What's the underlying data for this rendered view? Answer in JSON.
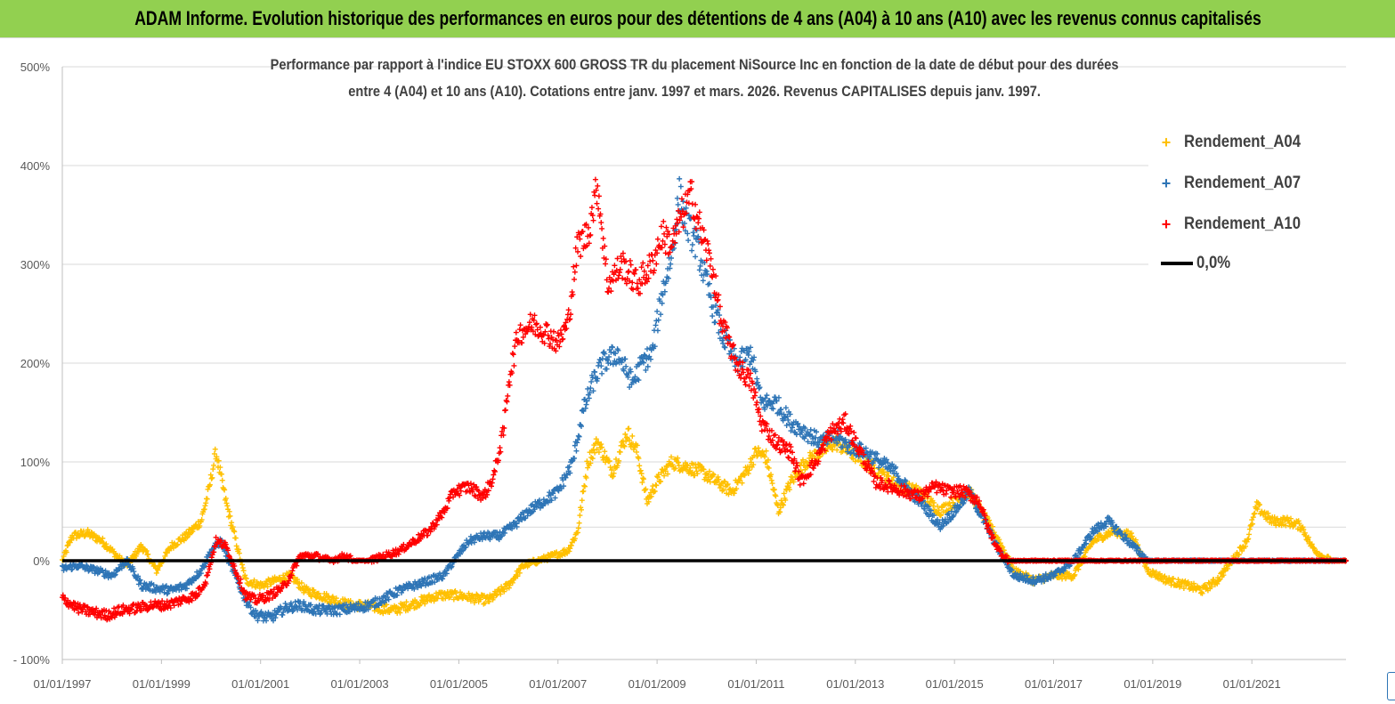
{
  "header": {
    "title": "ADAM Informe. Evolution historique des performances en euros pour des détentions de 4 ans (A04) à 10 ans (A10) avec les revenus connus capitalisés"
  },
  "chart_data": {
    "type": "scatter",
    "title_line1": "Performance par rapport à l'indice EU STOXX 600 GROSS TR  du placement NiSource Inc en fonction de la date de début pour des durées",
    "title_line2": "entre 4 (A04) et 10 ans (A10). Cotations entre janv. 1997 et mars. 2026. Revenus CAPITALISES depuis janv. 1997.",
    "xlabel": "",
    "ylabel": "",
    "x_range": [
      "1997-01-01",
      "2022-11-30"
    ],
    "ylim": [
      -100,
      500
    ],
    "y_ticks": [
      "- 100%",
      "0%",
      "100%",
      "200%",
      "300%",
      "400%",
      "500%"
    ],
    "y_tick_values": [
      -100,
      0,
      100,
      200,
      300,
      400,
      500
    ],
    "x_ticks": [
      "01/01/1997",
      "01/01/1999",
      "01/01/2001",
      "01/01/2003",
      "01/01/2005",
      "01/01/2007",
      "01/01/2009",
      "01/01/2011",
      "01/01/2013",
      "01/01/2015",
      "01/01/2017",
      "01/01/2019",
      "01/01/2021"
    ],
    "grid": "horizontal",
    "legend_position": "top-right",
    "series": [
      {
        "name": "Rendement_A04",
        "color": "#ffc000",
        "marker": "+",
        "points": [
          [
            1997.0,
            0
          ],
          [
            1997.2,
            25
          ],
          [
            1997.5,
            28
          ],
          [
            1997.8,
            20
          ],
          [
            1998.0,
            10
          ],
          [
            1998.3,
            -5
          ],
          [
            1998.6,
            15
          ],
          [
            1998.9,
            -10
          ],
          [
            1999.2,
            15
          ],
          [
            1999.5,
            25
          ],
          [
            1999.8,
            40
          ],
          [
            1999.95,
            70
          ],
          [
            2000.1,
            110
          ],
          [
            2000.3,
            60
          ],
          [
            2000.5,
            20
          ],
          [
            2000.7,
            -20
          ],
          [
            2001.0,
            -25
          ],
          [
            2001.3,
            -20
          ],
          [
            2001.6,
            -15
          ],
          [
            2001.9,
            -30
          ],
          [
            2002.2,
            -35
          ],
          [
            2002.5,
            -40
          ],
          [
            2002.8,
            -45
          ],
          [
            2003.1,
            -45
          ],
          [
            2003.4,
            -48
          ],
          [
            2003.7,
            -50
          ],
          [
            2004.0,
            -45
          ],
          [
            2004.3,
            -40
          ],
          [
            2004.6,
            -35
          ],
          [
            2005.0,
            -35
          ],
          [
            2005.3,
            -38
          ],
          [
            2005.6,
            -40
          ],
          [
            2006.0,
            -25
          ],
          [
            2006.3,
            -5
          ],
          [
            2006.6,
            0
          ],
          [
            2006.9,
            5
          ],
          [
            2007.2,
            10
          ],
          [
            2007.4,
            30
          ],
          [
            2007.6,
            100
          ],
          [
            2007.8,
            120
          ],
          [
            2008.1,
            90
          ],
          [
            2008.4,
            130
          ],
          [
            2008.6,
            110
          ],
          [
            2008.8,
            60
          ],
          [
            2009.0,
            80
          ],
          [
            2009.3,
            100
          ],
          [
            2009.6,
            95
          ],
          [
            2009.9,
            90
          ],
          [
            2010.2,
            80
          ],
          [
            2010.5,
            70
          ],
          [
            2010.8,
            90
          ],
          [
            2011.0,
            110
          ],
          [
            2011.2,
            105
          ],
          [
            2011.45,
            50
          ],
          [
            2011.7,
            80
          ],
          [
            2012.0,
            100
          ],
          [
            2012.3,
            110
          ],
          [
            2012.6,
            120
          ],
          [
            2012.9,
            110
          ],
          [
            2013.2,
            100
          ],
          [
            2013.6,
            85
          ],
          [
            2013.9,
            75
          ],
          [
            2014.3,
            70
          ],
          [
            2014.7,
            50
          ],
          [
            2015.0,
            60
          ],
          [
            2015.3,
            70
          ],
          [
            2015.6,
            45
          ],
          [
            2015.9,
            20
          ],
          [
            2016.2,
            -10
          ],
          [
            2016.6,
            -20
          ],
          [
            2017.0,
            -15
          ],
          [
            2017.4,
            -15
          ],
          [
            2017.8,
            20
          ],
          [
            2018.2,
            30
          ],
          [
            2018.6,
            25
          ],
          [
            2018.9,
            -10
          ],
          [
            2019.3,
            -20
          ],
          [
            2019.7,
            -25
          ],
          [
            2020.0,
            -30
          ],
          [
            2020.3,
            -20
          ],
          [
            2020.6,
            0
          ],
          [
            2020.9,
            20
          ],
          [
            2021.1,
            55
          ],
          [
            2021.4,
            40
          ],
          [
            2021.7,
            40
          ],
          [
            2022.0,
            35
          ],
          [
            2022.2,
            15
          ],
          [
            2022.4,
            5
          ],
          [
            2022.6,
            0
          ],
          [
            2022.9,
            0
          ]
        ]
      },
      {
        "name": "Rendement_A07",
        "color": "#2e75b6",
        "marker": "+",
        "points": [
          [
            1997.0,
            -8
          ],
          [
            1997.3,
            -5
          ],
          [
            1997.7,
            -10
          ],
          [
            1998.0,
            -15
          ],
          [
            1998.3,
            0
          ],
          [
            1998.6,
            -25
          ],
          [
            1998.9,
            -28
          ],
          [
            1999.2,
            -30
          ],
          [
            1999.5,
            -25
          ],
          [
            1999.8,
            -10
          ],
          [
            2000.0,
            10
          ],
          [
            2000.2,
            20
          ],
          [
            2000.4,
            -5
          ],
          [
            2000.7,
            -40
          ],
          [
            2000.9,
            -55
          ],
          [
            2001.2,
            -58
          ],
          [
            2001.5,
            -48
          ],
          [
            2001.8,
            -45
          ],
          [
            2002.1,
            -50
          ],
          [
            2002.5,
            -50
          ],
          [
            2002.9,
            -48
          ],
          [
            2003.2,
            -45
          ],
          [
            2003.5,
            -38
          ],
          [
            2003.8,
            -30
          ],
          [
            2004.1,
            -25
          ],
          [
            2004.4,
            -20
          ],
          [
            2004.7,
            -15
          ],
          [
            2004.9,
            0
          ],
          [
            2005.2,
            20
          ],
          [
            2005.5,
            25
          ],
          [
            2005.8,
            25
          ],
          [
            2006.1,
            35
          ],
          [
            2006.4,
            50
          ],
          [
            2006.7,
            60
          ],
          [
            2007.0,
            70
          ],
          [
            2007.3,
            100
          ],
          [
            2007.5,
            150
          ],
          [
            2007.7,
            180
          ],
          [
            2007.9,
            200
          ],
          [
            2008.2,
            210
          ],
          [
            2008.5,
            180
          ],
          [
            2008.7,
            200
          ],
          [
            2008.9,
            210
          ],
          [
            2009.1,
            270
          ],
          [
            2009.3,
            310
          ],
          [
            2009.45,
            370
          ],
          [
            2009.6,
            340
          ],
          [
            2009.8,
            320
          ],
          [
            2010.0,
            280
          ],
          [
            2010.3,
            230
          ],
          [
            2010.6,
            200
          ],
          [
            2010.9,
            210
          ],
          [
            2011.1,
            160
          ],
          [
            2011.4,
            160
          ],
          [
            2011.7,
            140
          ],
          [
            2012.0,
            130
          ],
          [
            2012.3,
            120
          ],
          [
            2012.6,
            125
          ],
          [
            2012.9,
            115
          ],
          [
            2013.2,
            110
          ],
          [
            2013.5,
            100
          ],
          [
            2013.8,
            90
          ],
          [
            2014.1,
            70
          ],
          [
            2014.4,
            55
          ],
          [
            2014.7,
            35
          ],
          [
            2015.0,
            50
          ],
          [
            2015.3,
            70
          ],
          [
            2015.6,
            40
          ],
          [
            2015.9,
            10
          ],
          [
            2016.2,
            -15
          ],
          [
            2016.6,
            -20
          ],
          [
            2017.0,
            -15
          ],
          [
            2017.4,
            0
          ],
          [
            2017.8,
            30
          ],
          [
            2018.1,
            40
          ],
          [
            2018.4,
            25
          ],
          [
            2018.7,
            10
          ],
          [
            2018.9,
            0
          ],
          [
            2019.2,
            0
          ],
          [
            2019.5,
            0
          ],
          [
            2020.0,
            0
          ],
          [
            2020.5,
            0
          ],
          [
            2021.0,
            0
          ],
          [
            2021.5,
            0
          ],
          [
            2022.0,
            0
          ],
          [
            2022.5,
            0
          ],
          [
            2022.9,
            0
          ]
        ]
      },
      {
        "name": "Rendement_A10",
        "color": "#ff0000",
        "marker": "+",
        "points": [
          [
            1997.0,
            -38
          ],
          [
            1997.3,
            -48
          ],
          [
            1997.6,
            -52
          ],
          [
            1997.9,
            -55
          ],
          [
            1998.2,
            -50
          ],
          [
            1998.5,
            -48
          ],
          [
            1998.8,
            -45
          ],
          [
            1999.1,
            -45
          ],
          [
            1999.4,
            -40
          ],
          [
            1999.7,
            -35
          ],
          [
            1999.9,
            -20
          ],
          [
            2000.1,
            20
          ],
          [
            2000.3,
            15
          ],
          [
            2000.5,
            -10
          ],
          [
            2000.7,
            -35
          ],
          [
            2000.9,
            -40
          ],
          [
            2001.2,
            -35
          ],
          [
            2001.5,
            -25
          ],
          [
            2001.8,
            5
          ],
          [
            2002.1,
            5
          ],
          [
            2002.4,
            0
          ],
          [
            2002.7,
            5
          ],
          [
            2002.9,
            0
          ],
          [
            2003.2,
            0
          ],
          [
            2003.5,
            5
          ],
          [
            2003.8,
            10
          ],
          [
            2004.1,
            20
          ],
          [
            2004.4,
            30
          ],
          [
            2004.7,
            50
          ],
          [
            2004.9,
            70
          ],
          [
            2005.2,
            75
          ],
          [
            2005.5,
            65
          ],
          [
            2005.7,
            85
          ],
          [
            2005.9,
            130
          ],
          [
            2006.0,
            180
          ],
          [
            2006.2,
            230
          ],
          [
            2006.5,
            240
          ],
          [
            2006.8,
            230
          ],
          [
            2007.0,
            220
          ],
          [
            2007.2,
            240
          ],
          [
            2007.4,
            320
          ],
          [
            2007.6,
            330
          ],
          [
            2007.8,
            380
          ],
          [
            2008.0,
            280
          ],
          [
            2008.3,
            300
          ],
          [
            2008.6,
            280
          ],
          [
            2008.9,
            300
          ],
          [
            2009.1,
            330
          ],
          [
            2009.3,
            320
          ],
          [
            2009.5,
            350
          ],
          [
            2009.7,
            370
          ],
          [
            2009.9,
            330
          ],
          [
            2010.1,
            300
          ],
          [
            2010.3,
            240
          ],
          [
            2010.6,
            200
          ],
          [
            2010.9,
            180
          ],
          [
            2011.1,
            140
          ],
          [
            2011.4,
            120
          ],
          [
            2011.7,
            110
          ],
          [
            2011.9,
            80
          ],
          [
            2012.2,
            100
          ],
          [
            2012.5,
            130
          ],
          [
            2012.8,
            140
          ],
          [
            2013.1,
            110
          ],
          [
            2013.4,
            80
          ],
          [
            2013.7,
            75
          ],
          [
            2014.0,
            70
          ],
          [
            2014.3,
            65
          ],
          [
            2014.6,
            75
          ],
          [
            2014.9,
            70
          ],
          [
            2015.2,
            70
          ],
          [
            2015.5,
            60
          ],
          [
            2015.7,
            30
          ],
          [
            2015.9,
            10
          ],
          [
            2016.1,
            0
          ],
          [
            2016.5,
            0
          ],
          [
            2017.0,
            0
          ],
          [
            2017.5,
            0
          ],
          [
            2018.0,
            0
          ],
          [
            2018.5,
            0
          ],
          [
            2019.0,
            0
          ],
          [
            2019.5,
            0
          ],
          [
            2020.0,
            0
          ],
          [
            2020.5,
            0
          ],
          [
            2021.0,
            0
          ],
          [
            2021.5,
            0
          ],
          [
            2022.0,
            0
          ],
          [
            2022.5,
            0
          ],
          [
            2022.9,
            0
          ]
        ]
      },
      {
        "name": "0,0%",
        "color": "#000000",
        "marker": "line",
        "value": 0
      }
    ]
  }
}
